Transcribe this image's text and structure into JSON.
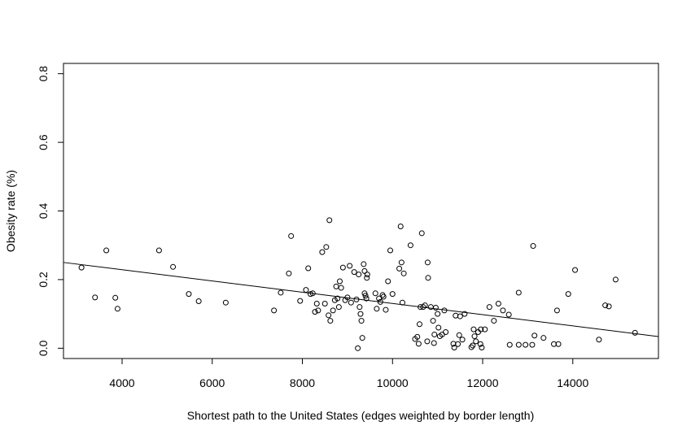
{
  "chart_data": {
    "type": "scatter",
    "title": "",
    "xlabel": "Shortest path to the United States (edges weighted by border length)",
    "ylabel": "Obesity rate (%)",
    "xlim": [
      2700,
      15900
    ],
    "ylim": [
      -0.03,
      0.83
    ],
    "xticks": [
      4000,
      6000,
      8000,
      10000,
      12000,
      14000
    ],
    "yticks": [
      0.0,
      0.2,
      0.4,
      0.6,
      0.8
    ],
    "xtick_labels": [
      "4000",
      "6000",
      "8000",
      "10000",
      "12000",
      "14000"
    ],
    "ytick_labels": [
      "0.0",
      "0.2",
      "0.4",
      "0.6",
      "0.8"
    ],
    "grid": false,
    "legend": "none",
    "point_style": "open-circle",
    "regression_line": {
      "x": [
        2700,
        15900
      ],
      "y": [
        0.25,
        0.034
      ]
    },
    "points": [
      [
        3100,
        0.235
      ],
      [
        3400,
        0.148
      ],
      [
        3650,
        0.285
      ],
      [
        3850,
        0.147
      ],
      [
        3900,
        0.115
      ],
      [
        4820,
        0.285
      ],
      [
        5130,
        0.237
      ],
      [
        5480,
        0.158
      ],
      [
        5700,
        0.137
      ],
      [
        6300,
        0.133
      ],
      [
        7370,
        0.11
      ],
      [
        7520,
        0.162
      ],
      [
        7700,
        0.218
      ],
      [
        7750,
        0.327
      ],
      [
        7950,
        0.138
      ],
      [
        8080,
        0.17
      ],
      [
        8130,
        0.233
      ],
      [
        8180,
        0.158
      ],
      [
        8230,
        0.16
      ],
      [
        8320,
        0.13
      ],
      [
        8280,
        0.106
      ],
      [
        8350,
        0.11
      ],
      [
        8440,
        0.28
      ],
      [
        8500,
        0.13
      ],
      [
        8530,
        0.295
      ],
      [
        8600,
        0.373
      ],
      [
        8580,
        0.096
      ],
      [
        8620,
        0.08
      ],
      [
        8680,
        0.11
      ],
      [
        8720,
        0.14
      ],
      [
        8750,
        0.18
      ],
      [
        8780,
        0.145
      ],
      [
        8810,
        0.12
      ],
      [
        8830,
        0.195
      ],
      [
        8860,
        0.176
      ],
      [
        8900,
        0.235
      ],
      [
        8950,
        0.14
      ],
      [
        9000,
        0.148
      ],
      [
        9050,
        0.24
      ],
      [
        9080,
        0.133
      ],
      [
        9150,
        0.222
      ],
      [
        9200,
        0.142
      ],
      [
        9230,
        0.0
      ],
      [
        9250,
        0.215
      ],
      [
        9270,
        0.12
      ],
      [
        9290,
        0.1
      ],
      [
        9310,
        0.08
      ],
      [
        9330,
        0.03
      ],
      [
        9360,
        0.245
      ],
      [
        9380,
        0.225
      ],
      [
        9380,
        0.16
      ],
      [
        9400,
        0.153
      ],
      [
        9420,
        0.145
      ],
      [
        9430,
        0.205
      ],
      [
        9440,
        0.215
      ],
      [
        9620,
        0.16
      ],
      [
        9650,
        0.115
      ],
      [
        9700,
        0.145
      ],
      [
        9730,
        0.135
      ],
      [
        9780,
        0.155
      ],
      [
        9800,
        0.15
      ],
      [
        9850,
        0.112
      ],
      [
        9900,
        0.195
      ],
      [
        9950,
        0.285
      ],
      [
        10000,
        0.158
      ],
      [
        10150,
        0.232
      ],
      [
        10180,
        0.355
      ],
      [
        10200,
        0.25
      ],
      [
        10250,
        0.218
      ],
      [
        10220,
        0.133
      ],
      [
        10400,
        0.3
      ],
      [
        10500,
        0.027
      ],
      [
        10550,
        0.033
      ],
      [
        10580,
        0.013
      ],
      [
        10600,
        0.07
      ],
      [
        10620,
        0.12
      ],
      [
        10650,
        0.335
      ],
      [
        10680,
        0.12
      ],
      [
        10720,
        0.125
      ],
      [
        10770,
        0.02
      ],
      [
        10780,
        0.25
      ],
      [
        10790,
        0.205
      ],
      [
        10850,
        0.12
      ],
      [
        10900,
        0.08
      ],
      [
        10920,
        0.015
      ],
      [
        10930,
        0.04
      ],
      [
        10960,
        0.118
      ],
      [
        11000,
        0.1
      ],
      [
        11020,
        0.06
      ],
      [
        11050,
        0.035
      ],
      [
        11100,
        0.04
      ],
      [
        11150,
        0.11
      ],
      [
        11180,
        0.047
      ],
      [
        11350,
        0.013
      ],
      [
        11370,
        0.002
      ],
      [
        11400,
        0.095
      ],
      [
        11450,
        0.012
      ],
      [
        11480,
        0.038
      ],
      [
        11500,
        0.093
      ],
      [
        11550,
        0.025
      ],
      [
        11600,
        0.1
      ],
      [
        11750,
        0.003
      ],
      [
        11780,
        0.008
      ],
      [
        11800,
        0.055
      ],
      [
        11820,
        0.035
      ],
      [
        11850,
        0.02
      ],
      [
        11900,
        0.047
      ],
      [
        11950,
        0.012
      ],
      [
        11960,
        0.055
      ],
      [
        11980,
        0.002
      ],
      [
        12050,
        0.055
      ],
      [
        12150,
        0.12
      ],
      [
        12250,
        0.08
      ],
      [
        12350,
        0.13
      ],
      [
        12450,
        0.11
      ],
      [
        12600,
        0.01
      ],
      [
        12580,
        0.098
      ],
      [
        12800,
        0.162
      ],
      [
        12800,
        0.01
      ],
      [
        12950,
        0.01
      ],
      [
        13100,
        0.01
      ],
      [
        13120,
        0.298
      ],
      [
        13150,
        0.037
      ],
      [
        13350,
        0.03
      ],
      [
        13580,
        0.012
      ],
      [
        13680,
        0.012
      ],
      [
        13650,
        0.11
      ],
      [
        13900,
        0.158
      ],
      [
        14050,
        0.228
      ],
      [
        14580,
        0.025
      ],
      [
        14720,
        0.125
      ],
      [
        14800,
        0.122
      ],
      [
        14950,
        0.2
      ],
      [
        15380,
        0.045
      ]
    ]
  }
}
